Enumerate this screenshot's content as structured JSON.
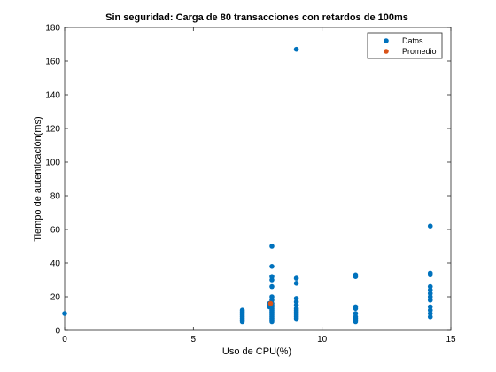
{
  "chart_data": {
    "type": "scatter",
    "title": "Sin seguridad: Carga de 80 transacciones con retardos de 100ms",
    "xlabel": "Uso de CPU(%)",
    "ylabel": "Tiempo de autenticación(ms)",
    "xlim": [
      0,
      15
    ],
    "ylim": [
      0,
      180
    ],
    "xticks": [
      0,
      5,
      10,
      15
    ],
    "yticks": [
      0,
      20,
      40,
      60,
      80,
      100,
      120,
      140,
      160,
      180
    ],
    "grid": false,
    "legend_position": "top-right",
    "series": [
      {
        "name": "Datos",
        "color": "#0072BD",
        "points": [
          [
            0,
            10
          ],
          [
            6.9,
            5
          ],
          [
            6.9,
            6
          ],
          [
            6.9,
            7
          ],
          [
            6.9,
            8
          ],
          [
            6.9,
            9
          ],
          [
            6.9,
            10
          ],
          [
            6.9,
            11
          ],
          [
            6.9,
            12
          ],
          [
            8.05,
            50
          ],
          [
            8.05,
            38
          ],
          [
            8.05,
            32
          ],
          [
            8.05,
            30
          ],
          [
            8.05,
            26
          ],
          [
            8.05,
            20
          ],
          [
            8.05,
            18
          ],
          [
            8.05,
            16
          ],
          [
            8.05,
            15
          ],
          [
            8.05,
            14
          ],
          [
            8.05,
            13
          ],
          [
            8.05,
            12
          ],
          [
            8.05,
            11
          ],
          [
            8.05,
            10
          ],
          [
            8.05,
            9
          ],
          [
            8.05,
            8
          ],
          [
            8.05,
            7
          ],
          [
            8.05,
            6
          ],
          [
            8.05,
            5
          ],
          [
            7.95,
            14
          ],
          [
            7.95,
            16
          ],
          [
            9.0,
            167
          ],
          [
            9.0,
            31
          ],
          [
            9.0,
            28
          ],
          [
            9.0,
            19
          ],
          [
            9.0,
            17
          ],
          [
            9.0,
            15
          ],
          [
            9.0,
            13
          ],
          [
            9.0,
            12
          ],
          [
            9.0,
            11
          ],
          [
            9.0,
            10
          ],
          [
            9.0,
            9
          ],
          [
            9.0,
            8
          ],
          [
            9.0,
            7
          ],
          [
            11.3,
            33
          ],
          [
            11.3,
            32
          ],
          [
            11.3,
            14
          ],
          [
            11.3,
            13
          ],
          [
            11.3,
            10
          ],
          [
            11.3,
            8
          ],
          [
            11.3,
            7
          ],
          [
            11.3,
            6
          ],
          [
            11.3,
            5
          ],
          [
            14.2,
            62
          ],
          [
            14.2,
            34
          ],
          [
            14.2,
            33
          ],
          [
            14.2,
            26
          ],
          [
            14.2,
            24
          ],
          [
            14.2,
            22
          ],
          [
            14.2,
            20
          ],
          [
            14.2,
            18
          ],
          [
            14.2,
            14
          ],
          [
            14.2,
            12
          ],
          [
            14.2,
            10
          ],
          [
            14.2,
            8
          ]
        ]
      },
      {
        "name": "Promedio",
        "color": "#D95319",
        "points": [
          [
            8.0,
            16
          ]
        ]
      }
    ]
  }
}
